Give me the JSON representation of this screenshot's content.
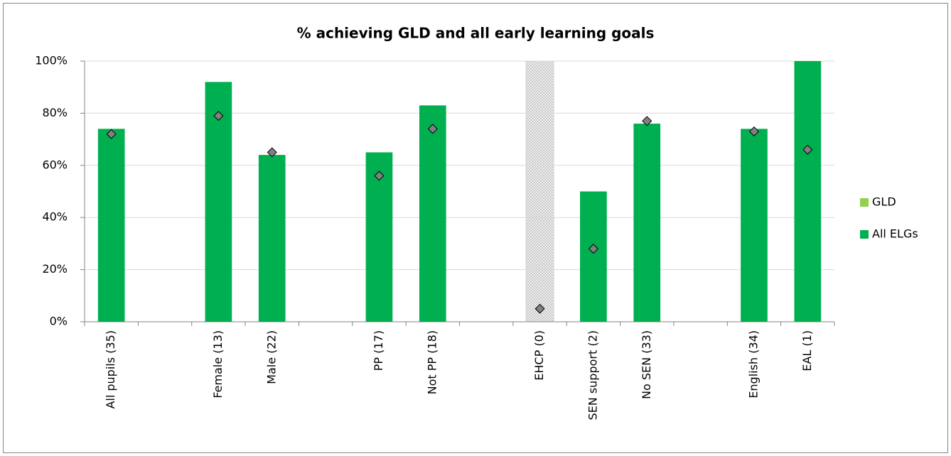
{
  "chart_data": {
    "type": "bar",
    "title": "% achieving GLD and all early learning goals",
    "categories": [
      "All pupils (35)",
      null,
      "Female (13)",
      "Male (22)",
      null,
      "PP (17)",
      "Not PP (18)",
      null,
      "EHCP (0)",
      "SEN support (2)",
      "No SEN (33)",
      null,
      "English (34)",
      "EAL (1)"
    ],
    "series": [
      {
        "name": "GLD",
        "color": "#92d050",
        "values": [
          null,
          null,
          null,
          null,
          null,
          null,
          null,
          null,
          null,
          null,
          null,
          null,
          null,
          null
        ]
      },
      {
        "name": "All ELGs",
        "color": "#00b050",
        "values": [
          74,
          null,
          92,
          64,
          null,
          65,
          83,
          null,
          null,
          50,
          76,
          null,
          74,
          100
        ]
      },
      {
        "color": "#808080",
        "marker": "diamond",
        "values": [
          72,
          null,
          79,
          65,
          null,
          56,
          74,
          null,
          5,
          28,
          77,
          null,
          73,
          66
        ]
      }
    ],
    "shaded_categories": [
      8
    ],
    "ylim": [
      0,
      100
    ],
    "yticks": [
      {
        "value": 0,
        "label": "0%"
      },
      {
        "value": 20,
        "label": "20%"
      },
      {
        "value": 40,
        "label": "40%"
      },
      {
        "value": 60,
        "label": "60%"
      },
      {
        "value": 80,
        "label": "80%"
      },
      {
        "value": 100,
        "label": "100%"
      }
    ],
    "grid": true,
    "legend": "right"
  }
}
